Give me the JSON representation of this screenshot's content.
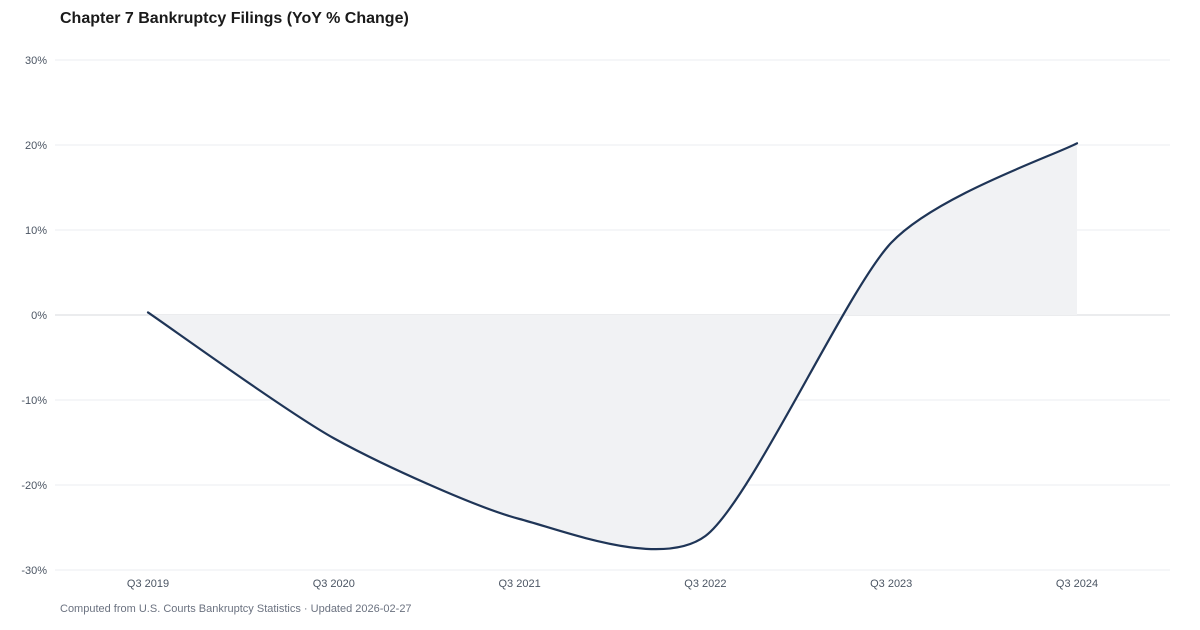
{
  "title": "Chapter 7 Bankruptcy Filings (YoY % Change)",
  "footer": "Computed from U.S. Courts Bankruptcy Statistics · Updated 2026-02-27",
  "colors": {
    "line": "#1f3557",
    "area": "#f1f2f4",
    "grid": "#ebedf0",
    "zero_line": "#d7dade"
  },
  "chart_data": {
    "type": "area",
    "title": "Chapter 7 Bankruptcy Filings (YoY % Change)",
    "xlabel": "",
    "ylabel": "",
    "categories": [
      "Q3 2019",
      "Q3 2020",
      "Q3 2021",
      "Q3 2022",
      "Q3 2023",
      "Q3 2024"
    ],
    "series": [
      {
        "values": [
          0.3,
          -14.5,
          -24,
          -26,
          8.5,
          20.2
        ]
      }
    ],
    "ylim": [
      -30,
      30
    ],
    "yticks": [
      30,
      20,
      10,
      0,
      -10,
      -20,
      -30
    ],
    "ytick_labels": [
      "30%",
      "20%",
      "10%",
      "0%",
      "-10%",
      "-20%",
      "-30%"
    ],
    "grid": true,
    "legend": "none"
  }
}
